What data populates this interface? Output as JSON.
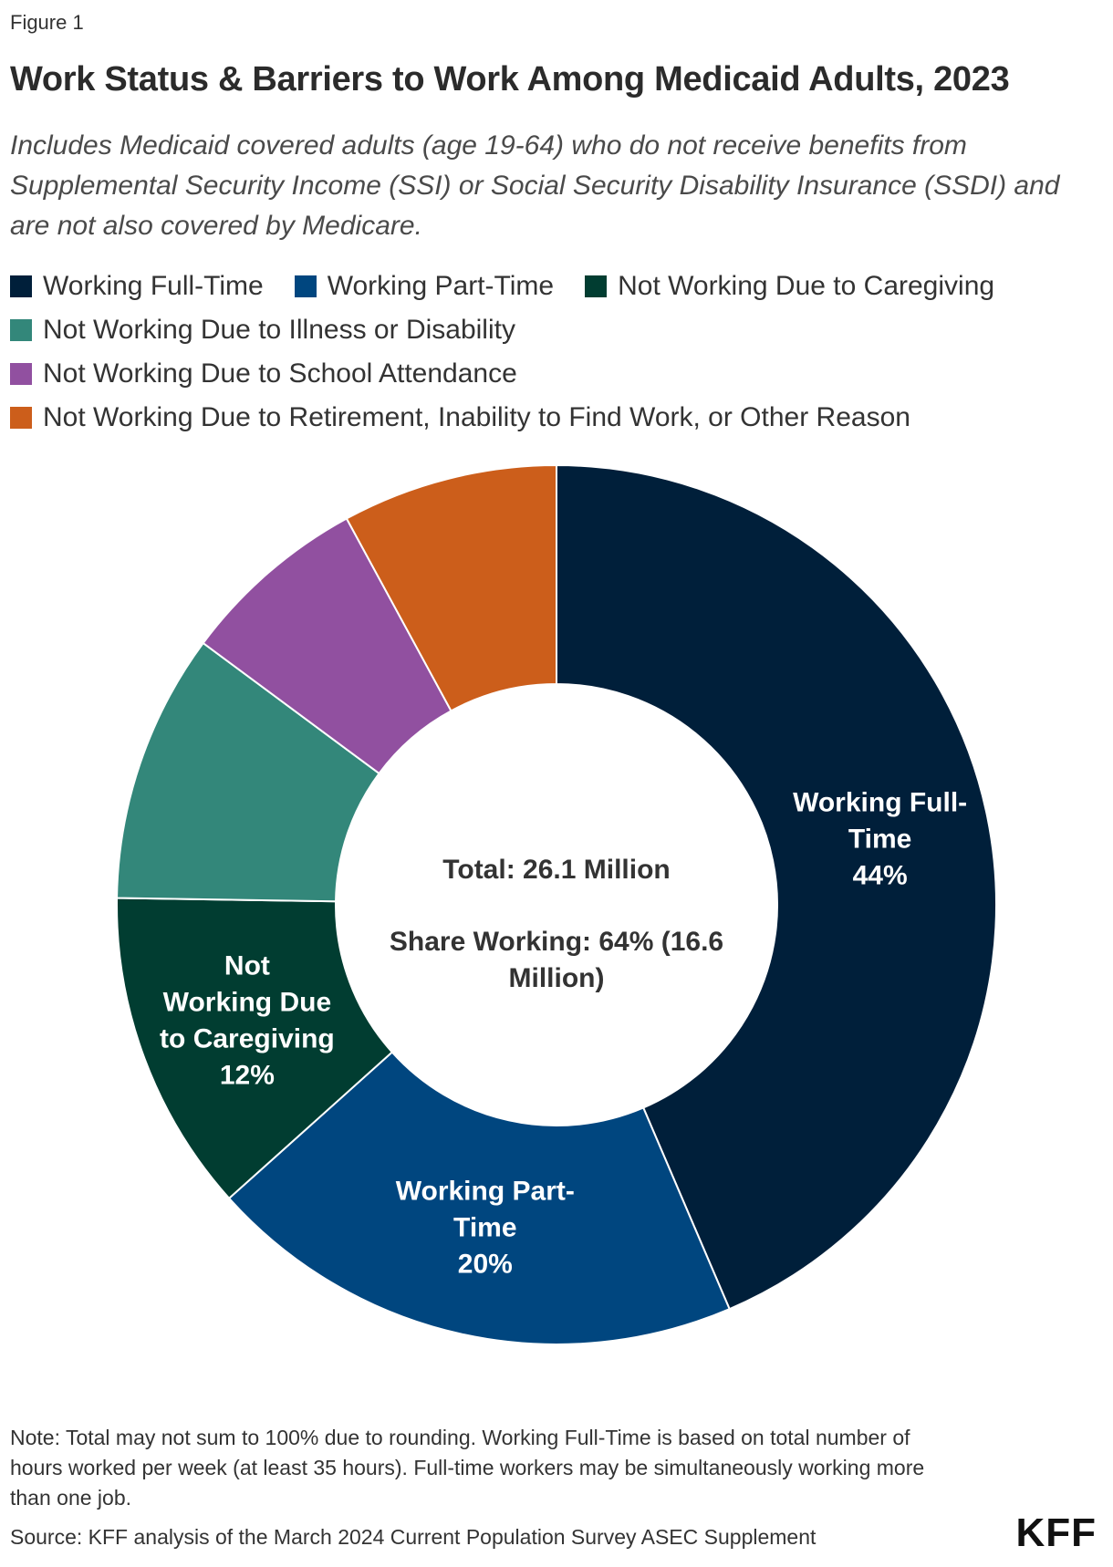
{
  "figure_label": "Figure 1",
  "title": "Work Status & Barriers to Work Among Medicaid Adults, 2023",
  "subtitle": "Includes Medicaid covered adults (age 19-64) who do not receive benefits from Supplemental Security Income (SSI) or Social Security Disability Insurance (SSDI) and are not also covered by Medicare.",
  "legend": [
    {
      "label": "Working Full-Time",
      "color": "#001f3a"
    },
    {
      "label": "Working Part-Time",
      "color": "#00467f"
    },
    {
      "label": "Not Working Due to Caregiving",
      "color": "#013d31"
    },
    {
      "label": "Not Working Due to Illness or Disability",
      "color": "#33877a"
    },
    {
      "label": "Not Working Due to School Attendance",
      "color": "#9150a0"
    },
    {
      "label": "Not Working Due to Retirement, Inability to Find Work, or Other Reason",
      "color": "#cc5e1b"
    }
  ],
  "center": {
    "total": "Total: 26.1 Million",
    "share_line1": "Share Working: 64% (16.6",
    "share_line2": "Million)"
  },
  "chart_data": {
    "type": "pie",
    "variant": "donut",
    "categories": [
      "Working Full-Time",
      "Working Part-Time",
      "Not Working Due to Caregiving",
      "Not Working Due to Illness or Disability",
      "Not Working Due to School Attendance",
      "Not Working Due to Retirement, Inability to Find Work, or Other Reason"
    ],
    "values": [
      44,
      20,
      12,
      10,
      7,
      8
    ],
    "unit": "%",
    "colors": [
      "#001f3a",
      "#00467f",
      "#013d31",
      "#33877a",
      "#9150a0",
      "#cc5e1b"
    ],
    "slice_labels": [
      {
        "lines": [
          "Working Full-",
          "Time"
        ],
        "value": "44%"
      },
      {
        "lines": [
          "Working Part-",
          "Time"
        ],
        "value": "20%"
      },
      {
        "lines": [
          "Not",
          "Working Due",
          "to Caregiving"
        ],
        "value": "12%"
      },
      null,
      null,
      null
    ],
    "start": "12 o'clock",
    "direction": "clockwise"
  },
  "note": "Note: Total may not sum to 100% due to rounding. Working Full-Time is based on total number of hours worked per week (at least 35 hours). Full-time workers may be simultaneously working more than one job.",
  "source": "Source: KFF analysis of the March 2024 Current Population Survey ASEC Supplement",
  "logo": "KFF"
}
